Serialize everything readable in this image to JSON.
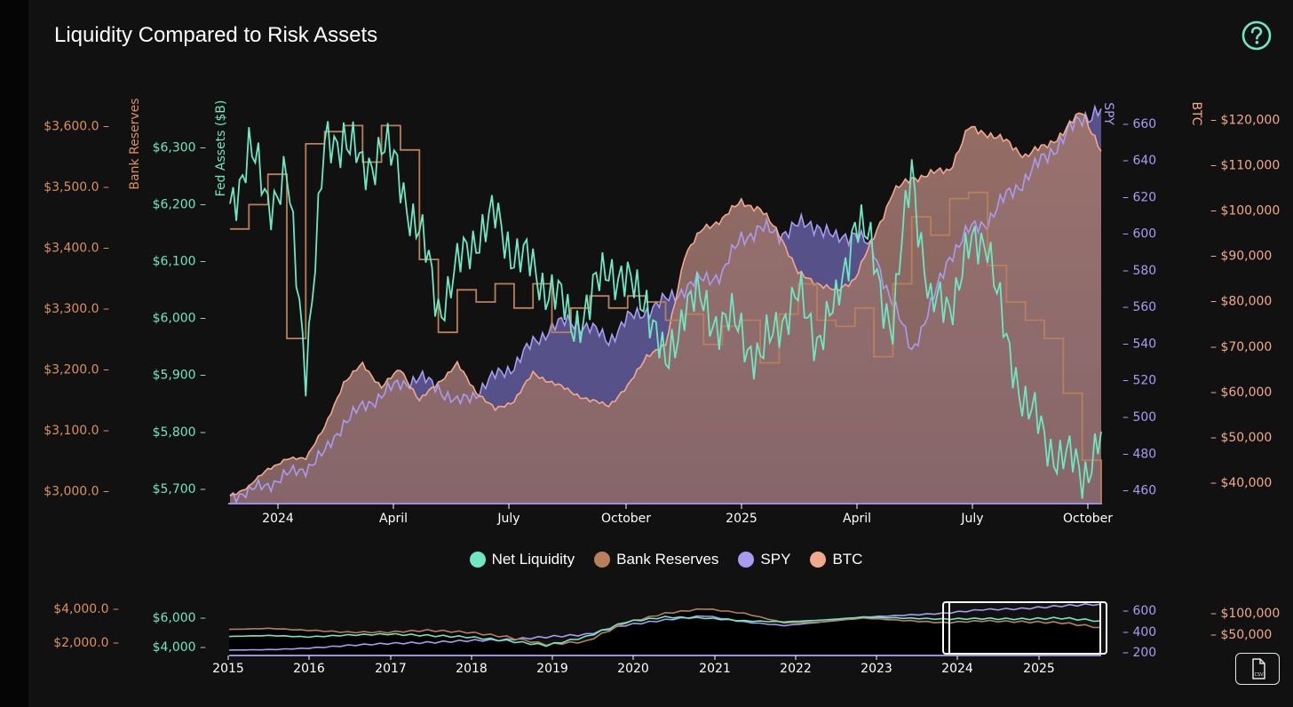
{
  "title": "Liquidity Compared to Risk Assets",
  "help_icon": "question-circle-icon",
  "csv_icon": "csv-file-icon",
  "csv_label": "CSV",
  "colors": {
    "net": "#6ee7c2",
    "reserves": "#b8805a",
    "spy": "#a89cf0",
    "btc": "#f2a98b",
    "reserves_axis": "#d9915f",
    "grid_text": "#ffffff"
  },
  "legend": [
    {
      "label": "Net Liquidity",
      "color": "#6ee7c2"
    },
    {
      "label": "Bank Reserves",
      "color": "#b8805a"
    },
    {
      "label": "SPY",
      "color": "#a89cf0"
    },
    {
      "label": "BTC",
      "color": "#f2a98b"
    }
  ],
  "chart_data": [
    {
      "type": "line",
      "title": "Liquidity Compared to Risk Assets",
      "x_range": [
        "2023-11",
        "2025-10"
      ],
      "x_ticks": [
        "2024",
        "April",
        "July",
        "October",
        "2025",
        "April",
        "July",
        "October"
      ],
      "axes": {
        "bank_reserves": {
          "label": "Bank Reserves",
          "ticks": [
            "$3,000.0",
            "$3,100.0",
            "$3,200.0",
            "$3,300.0",
            "$3,400.0",
            "$3,500.0",
            "$3,600.0"
          ],
          "range": [
            2980,
            3640
          ]
        },
        "fed_assets": {
          "label": "Fed Assets ($B)",
          "ticks": [
            "$5,700",
            "$5,800",
            "$5,900",
            "$6,000",
            "$6,100",
            "$6,200",
            "$6,300"
          ],
          "range": [
            5675,
            6380
          ]
        },
        "spy": {
          "label": "SPY",
          "ticks": [
            "460",
            "480",
            "500",
            "520",
            "540",
            "560",
            "580",
            "600",
            "620",
            "640",
            "660"
          ],
          "range": [
            453,
            672
          ]
        },
        "btc": {
          "label": "BTC",
          "ticks": [
            "$40,000",
            "$50,000",
            "$60,000",
            "$70,000",
            "$80,000",
            "$90,000",
            "$100,000",
            "$110,000",
            "$120,000"
          ],
          "range": [
            35500,
            124000
          ]
        }
      },
      "series": [
        {
          "name": "Net Liquidity",
          "axis": "fed_assets",
          "values": [
            6200,
            6290,
            6210,
            6240,
            5920,
            6290,
            6330,
            6250,
            6310,
            6240,
            6150,
            6020,
            6080,
            6150,
            6170,
            6120,
            6080,
            6050,
            5990,
            6020,
            6100,
            6050,
            6040,
            5900,
            6030,
            6020,
            5990,
            5980,
            5920,
            6000,
            6030,
            5970,
            6010,
            6180,
            6100,
            5980,
            6270,
            6010,
            6030,
            6110,
            6150,
            5940,
            5860,
            5780,
            5760,
            5720,
            5800
          ]
        },
        {
          "name": "Bank Reserves",
          "axis": "bank_reserves",
          "values": [
            3430,
            3470,
            3520,
            3250,
            3570,
            3590,
            3600,
            3540,
            3600,
            3560,
            3380,
            3260,
            3330,
            3310,
            3340,
            3300,
            3340,
            3260,
            3300,
            3320,
            3300,
            3320,
            3310,
            3280,
            3290,
            3240,
            3270,
            3280,
            3210,
            3290,
            3340,
            3280,
            3270,
            3300,
            3220,
            3340,
            3450,
            3420,
            3480,
            3490,
            3370,
            3310,
            3280,
            3250,
            3160,
            3050,
            2980
          ]
        },
        {
          "name": "SPY",
          "axis": "spy",
          "values": [
            457,
            459,
            463,
            468,
            472,
            480,
            497,
            505,
            512,
            518,
            521,
            516,
            507,
            513,
            522,
            528,
            540,
            549,
            552,
            548,
            542,
            553,
            558,
            563,
            570,
            575,
            578,
            598,
            602,
            600,
            604,
            605,
            596,
            601,
            589,
            562,
            536,
            560,
            588,
            601,
            607,
            620,
            630,
            641,
            652,
            663,
            668
          ]
        },
        {
          "name": "BTC",
          "axis": "btc",
          "values": [
            37000,
            39000,
            43000,
            45000,
            45500,
            52000,
            62000,
            66000,
            61000,
            65000,
            58000,
            62000,
            66000,
            60000,
            56000,
            58000,
            64000,
            62000,
            60000,
            58000,
            57000,
            61000,
            68000,
            70000,
            90000,
            96000,
            98000,
            102000,
            100000,
            95000,
            86000,
            84000,
            82000,
            85000,
            94000,
            104000,
            107000,
            108000,
            109000,
            118000,
            117000,
            115000,
            112000,
            114000,
            117000,
            122000,
            113000
          ]
        }
      ]
    },
    {
      "type": "line",
      "title": "overview navigator",
      "x_ticks": [
        "2015",
        "2016",
        "2017",
        "2018",
        "2019",
        "2020",
        "2021",
        "2022",
        "2023",
        "2024",
        "2025"
      ],
      "selection": [
        "2023-11",
        "2025-10"
      ],
      "axes": {
        "bank_reserves": {
          "ticks": [
            "$2,000.0",
            "$4,000.0"
          ]
        },
        "fed_assets": {
          "ticks": [
            "$4,000",
            "$6,000"
          ]
        },
        "spy": {
          "ticks": [
            "200",
            "400",
            "600"
          ]
        },
        "btc": {
          "ticks": [
            "$50,000",
            "$100,000"
          ]
        }
      },
      "series": [
        {
          "name": "Net Liquidity",
          "values": [
            0.31,
            0.33,
            0.3,
            0.34,
            0.36,
            0.33,
            0.3,
            0.22,
            0.12,
            0.3,
            0.62,
            0.72,
            0.7,
            0.64,
            0.62,
            0.66,
            0.72,
            0.7,
            0.68,
            0.69,
            0.68,
            0.7,
            0.64
          ]
        },
        {
          "name": "Bank Reserves",
          "values": [
            0.46,
            0.48,
            0.44,
            0.4,
            0.4,
            0.44,
            0.4,
            0.3,
            0.14,
            0.2,
            0.6,
            0.8,
            0.9,
            0.8,
            0.6,
            0.62,
            0.7,
            0.65,
            0.6,
            0.64,
            0.62,
            0.6,
            0.5
          ]
        },
        {
          "name": "SPY",
          "values": [
            0.02,
            0.03,
            0.06,
            0.12,
            0.16,
            0.18,
            0.22,
            0.24,
            0.3,
            0.35,
            0.55,
            0.66,
            0.75,
            0.62,
            0.54,
            0.62,
            0.72,
            0.76,
            0.8,
            0.88,
            0.9,
            0.96,
            1.0
          ]
        }
      ]
    }
  ]
}
